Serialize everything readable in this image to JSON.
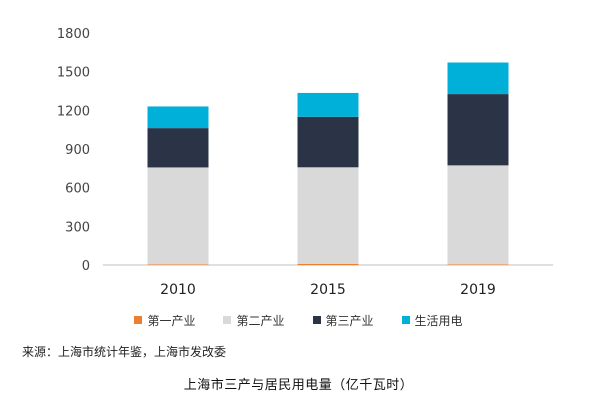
{
  "chart_data": {
    "type": "bar",
    "stacked": true,
    "categories": [
      "2010",
      "2015",
      "2019"
    ],
    "series": [
      {
        "name": "第一产业",
        "values": [
          5,
          8,
          5
        ],
        "color": "#ed7d31"
      },
      {
        "name": "第二产业",
        "values": [
          752,
          750,
          768
        ],
        "color": "#d9d9d9"
      },
      {
        "name": "第三产业",
        "values": [
          305,
          392,
          553
        ],
        "color": "#2b3447"
      },
      {
        "name": "生活用电",
        "values": [
          168,
          185,
          245
        ],
        "color": "#00b0d8"
      }
    ],
    "ylim": [
      0,
      1800
    ],
    "yticks": [
      0,
      300,
      600,
      900,
      1200,
      1500,
      1800
    ],
    "grid": false,
    "legend": "bottom"
  },
  "source": "来源：上海市统计年鉴，上海市发改委",
  "caption": "上海市三产与居民用电量（亿千瓦时）"
}
